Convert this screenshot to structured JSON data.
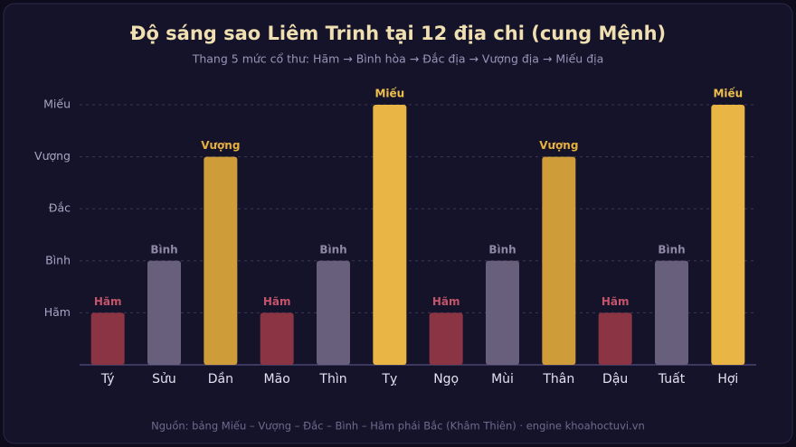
{
  "chart_data": {
    "type": "bar",
    "title": "Độ sáng sao Liêm Trinh tại 12 địa chi (cung Mệnh)",
    "subtitle": "Thang 5 mức cổ thư: Hãm → Bình hòa → Đắc địa → Vượng địa → Miếu địa",
    "footer": "Nguồn: bảng Miếu – Vượng – Đắc – Bình – Hãm phái Bắc (Khâm Thiên) · engine khoahoctuvi.vn",
    "categories": [
      "Tý",
      "Sửu",
      "Dần",
      "Mão",
      "Thìn",
      "Tỵ",
      "Ngọ",
      "Mùi",
      "Thân",
      "Dậu",
      "Tuất",
      "Hợi"
    ],
    "values": [
      1,
      2,
      4,
      1,
      2,
      5,
      1,
      2,
      4,
      1,
      2,
      5
    ],
    "value_labels": [
      "Hãm",
      "Bình",
      "Vượng",
      "Hãm",
      "Bình",
      "Miếu",
      "Hãm",
      "Bình",
      "Vượng",
      "Hãm",
      "Bình",
      "Miếu"
    ],
    "colors": [
      "#8a3444",
      "#675f7c",
      "#cf9c3a",
      "#8a3444",
      "#675f7c",
      "#e9b646",
      "#8a3444",
      "#675f7c",
      "#cf9c3a",
      "#8a3444",
      "#675f7c",
      "#e9b646"
    ],
    "label_colors": [
      "#c4546a",
      "#8f88a6",
      "#e6b040",
      "#c4546a",
      "#8f88a6",
      "#f0bf4c",
      "#c4546a",
      "#8f88a6",
      "#e6b040",
      "#c4546a",
      "#8f88a6",
      "#f0bf4c"
    ],
    "ylim": [
      0,
      5
    ],
    "yticks": [
      {
        "value": 1,
        "label": "Hãm"
      },
      {
        "value": 2,
        "label": "Bình"
      },
      {
        "value": 3,
        "label": "Đắc"
      },
      {
        "value": 4,
        "label": "Vượng"
      },
      {
        "value": 5,
        "label": "Miếu"
      }
    ],
    "grid": true
  }
}
